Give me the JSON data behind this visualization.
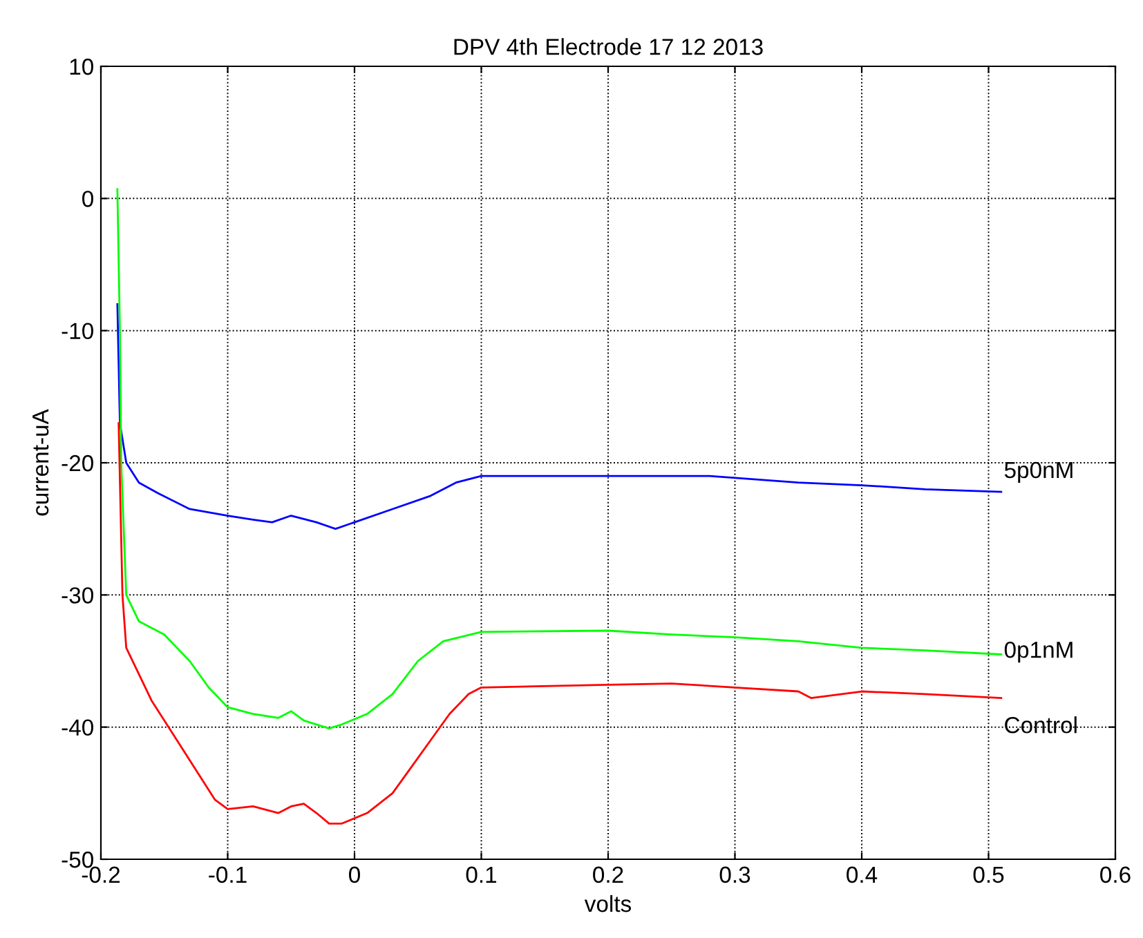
{
  "chart_data": {
    "type": "line",
    "title": "DPV 4th Electrode 17 12 2013",
    "xlabel": "volts",
    "ylabel": "current-uA",
    "xlim": [
      -0.2,
      0.6
    ],
    "ylim": [
      -50,
      10
    ],
    "xticks": [
      -0.2,
      -0.1,
      0,
      0.1,
      0.2,
      0.3,
      0.4,
      0.5,
      0.6
    ],
    "yticks": [
      -50,
      -40,
      -30,
      -20,
      -10,
      0,
      10
    ],
    "grid": true,
    "legend": false,
    "series": [
      {
        "name": "5p0nM",
        "color": "#0000ff",
        "x": [
          -0.187,
          -0.185,
          -0.18,
          -0.17,
          -0.155,
          -0.13,
          -0.1,
          -0.08,
          -0.065,
          -0.05,
          -0.03,
          -0.015,
          0,
          0.03,
          0.06,
          0.08,
          0.1,
          0.15,
          0.2,
          0.28,
          0.35,
          0.4,
          0.45,
          0.51
        ],
        "values": [
          -8,
          -17,
          -20,
          -21.5,
          -22.3,
          -23.5,
          -24,
          -24.3,
          -24.5,
          -24,
          -24.5,
          -25,
          -24.5,
          -23.5,
          -22.5,
          -21.5,
          -21,
          -21,
          -21,
          -21,
          -21.5,
          -21.7,
          -22,
          -22.2
        ]
      },
      {
        "name": "0p1nM",
        "color": "#00ff00",
        "x": [
          -0.187,
          -0.185,
          -0.184,
          -0.18,
          -0.17,
          -0.15,
          -0.13,
          -0.115,
          -0.1,
          -0.08,
          -0.06,
          -0.05,
          -0.04,
          -0.02,
          -0.01,
          0.01,
          0.03,
          0.05,
          0.07,
          0.1,
          0.2,
          0.25,
          0.3,
          0.35,
          0.4,
          0.45,
          0.51
        ],
        "values": [
          0.7,
          -10,
          -20,
          -30,
          -32,
          -33,
          -35,
          -37,
          -38.5,
          -39,
          -39.3,
          -38.8,
          -39.5,
          -40.1,
          -39.8,
          -39,
          -37.5,
          -35,
          -33.5,
          -32.8,
          -32.7,
          -33,
          -33.2,
          -33.5,
          -34,
          -34.2,
          -34.5
        ]
      },
      {
        "name": "Control",
        "color": "#ff0000",
        "x": [
          -0.186,
          -0.183,
          -0.18,
          -0.17,
          -0.16,
          -0.14,
          -0.12,
          -0.11,
          -0.1,
          -0.08,
          -0.06,
          -0.05,
          -0.04,
          -0.03,
          -0.02,
          -0.01,
          0.01,
          0.03,
          0.045,
          0.06,
          0.075,
          0.09,
          0.1,
          0.2,
          0.25,
          0.3,
          0.35,
          0.36,
          0.4,
          0.45,
          0.51
        ],
        "values": [
          -17,
          -30,
          -34,
          -36,
          -38,
          -41,
          -44,
          -45.5,
          -46.2,
          -46,
          -46.5,
          -46,
          -45.8,
          -46.5,
          -47.3,
          -47.3,
          -46.5,
          -45,
          -43,
          -41,
          -39,
          -37.5,
          -37,
          -36.8,
          -36.7,
          -37,
          -37.3,
          -37.8,
          -37.3,
          -37.5,
          -37.8
        ]
      }
    ]
  }
}
